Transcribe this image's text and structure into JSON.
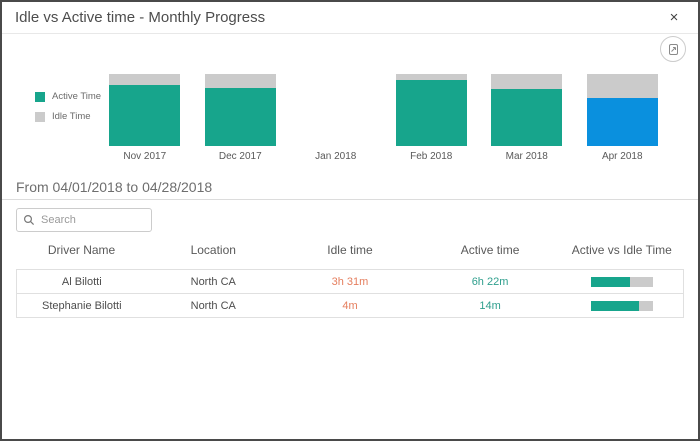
{
  "dialog": {
    "title": "Idle vs Active time - Monthly Progress",
    "close_glyph": "×"
  },
  "colors": {
    "active_teal": "#17a58c",
    "idle_gray": "#cbcbcb",
    "highlight_blue": "#0a90de",
    "idle_text_orange": "#e57e5e",
    "active_text_teal": "#2f9f8d"
  },
  "chart_data": {
    "type": "bar",
    "stacked": true,
    "categories": [
      "Nov 2017",
      "Dec 2017",
      "Jan 2018",
      "Feb 2018",
      "Mar 2018",
      "Apr 2018"
    ],
    "series": [
      {
        "name": "Active Time",
        "color": "#17a58c",
        "values": [
          85,
          81,
          0,
          92,
          79,
          67
        ]
      },
      {
        "name": "Idle Time",
        "color": "#cbcbcb",
        "values": [
          15,
          19,
          0,
          8,
          21,
          33
        ]
      }
    ],
    "unit": "percent of full column height",
    "ylim": [
      0,
      100
    ],
    "legend_position": "left",
    "highlight": {
      "category": "Apr 2018",
      "series": "Active Time",
      "color": "#0a90de"
    }
  },
  "legend": {
    "items": [
      {
        "label": "Active Time",
        "color": "#17a58c"
      },
      {
        "label": "Idle Time",
        "color": "#cbcbcb"
      }
    ]
  },
  "period": {
    "label": "From 04/01/2018 to 04/28/2018"
  },
  "search": {
    "placeholder": "Search"
  },
  "table": {
    "columns": [
      "Driver Name",
      "Location",
      "Idle time",
      "Active time",
      "Active vs Idle Time"
    ],
    "col_widths": [
      "19.5%",
      "20%",
      "21%",
      "21%",
      "18.5%"
    ],
    "rows": [
      {
        "driver": "Al Bilotti",
        "location": "North CA",
        "idle": "3h 31m",
        "active": "6h 22m",
        "active_pct": 64
      },
      {
        "driver": "Stephanie Bilotti",
        "location": "North CA",
        "idle": "4m",
        "active": "14m",
        "active_pct": 78
      }
    ]
  }
}
